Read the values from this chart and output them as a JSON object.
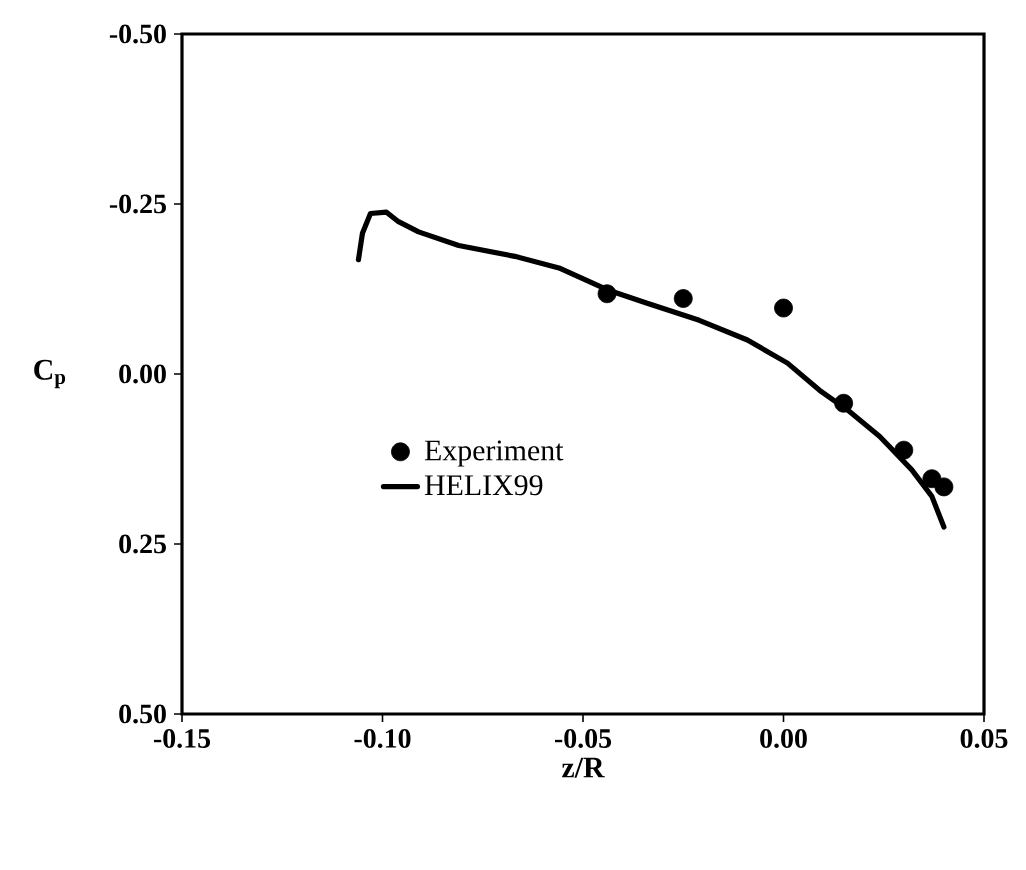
{
  "chart_data": {
    "type": "line",
    "xlabel": "z/R",
    "ylabel": "C$_{p}$",
    "xlim": [
      -0.15,
      0.05
    ],
    "xticks": [
      {
        "value": -0.15,
        "label": "-0.15"
      },
      {
        "value": -0.1,
        "label": "-0.10"
      },
      {
        "value": -0.05,
        "label": "-0.05"
      },
      {
        "value": 0.0,
        "label": "0.00"
      },
      {
        "value": 0.05,
        "label": "0.05"
      }
    ],
    "ylim": [
      0.5,
      -0.5
    ],
    "yticks": [
      {
        "value": -0.5,
        "label": "-0.50"
      },
      {
        "value": -0.25,
        "label": "-0.25"
      },
      {
        "value": 0.0,
        "label": "0.00"
      },
      {
        "value": 0.25,
        "label": "0.25"
      },
      {
        "value": 0.5,
        "label": "0.50"
      }
    ],
    "legend": "center left",
    "grid": false,
    "series": [
      {
        "name": "Experiment",
        "type": "scatter",
        "marker": "circle",
        "color": "#000000",
        "x": [
          -0.044,
          -0.025,
          0.0,
          0.015,
          0.03,
          0.037,
          0.04
        ],
        "values": [
          -0.118,
          -0.111,
          -0.097,
          0.043,
          0.112,
          0.154,
          0.166
        ]
      },
      {
        "name": "HELIX99",
        "type": "line",
        "line_style": "solid",
        "color": "#000000",
        "x": [
          -0.106,
          -0.105,
          -0.103,
          -0.099,
          -0.096,
          -0.091,
          -0.081,
          -0.067,
          -0.056,
          -0.044,
          -0.034,
          -0.021,
          -0.009,
          0.001,
          0.009,
          0.016,
          0.024,
          0.032,
          0.037,
          0.04
        ],
        "values": [
          -0.168,
          -0.207,
          -0.236,
          -0.238,
          -0.224,
          -0.209,
          -0.189,
          -0.173,
          -0.156,
          -0.124,
          -0.104,
          -0.079,
          -0.05,
          -0.016,
          0.024,
          0.053,
          0.092,
          0.141,
          0.18,
          0.225
        ]
      }
    ]
  }
}
